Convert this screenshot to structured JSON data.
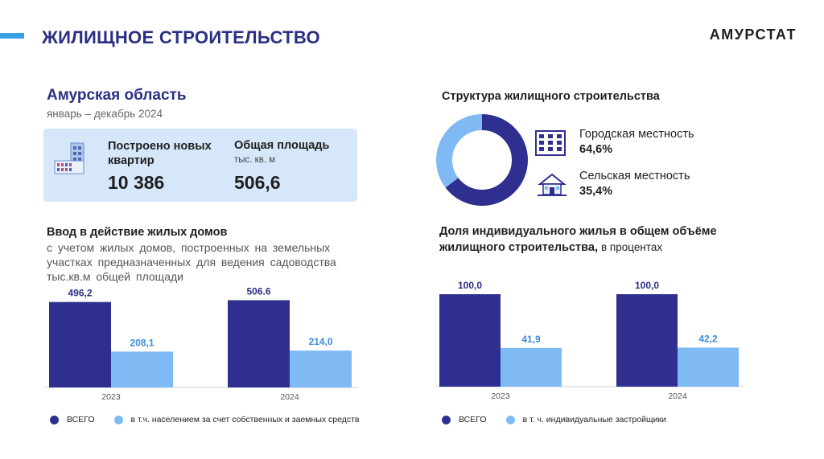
{
  "header": {
    "title": "ЖИЛИЩНОЕ СТРОИТЕЛЬСТВО",
    "brand": "АМУРСТАТ"
  },
  "region": {
    "name": "Амурская область",
    "period": "январь – декабрь 2024"
  },
  "stats": {
    "apartments": {
      "label": "Построено новых квартир",
      "value": "10 386"
    },
    "area": {
      "label": "Общая площадь",
      "unit": "тыс. кв. м",
      "value": "506,6"
    }
  },
  "structure": {
    "title": "Структура жилищного строительства",
    "urban": {
      "label": "Городская местность",
      "value": "64,6%"
    },
    "rural": {
      "label": "Сельская местность",
      "value": "35,4%"
    }
  },
  "colors": {
    "dark": "#2f2f8f",
    "light": "#7fbaf5",
    "accent": "#3aa0e6",
    "title": "#2b2f84"
  },
  "icons": [
    "building-icon",
    "city-building-icon",
    "house-icon"
  ],
  "chart_data": [
    {
      "type": "bar",
      "title": "Ввод в действие жилых домов",
      "subtitle": "с учетом жилых домов, построенных на земельных участках предназначенных для ведения садоводства",
      "ylabel": "тыс.кв.м общей площади",
      "categories": [
        "2023",
        "2024"
      ],
      "series": [
        {
          "name": "ВСЕГО",
          "values": [
            496.2,
            506.6
          ],
          "labels": [
            "496,2",
            "506.6"
          ]
        },
        {
          "name": "в т.ч. населением за счет собственных и заемных средств",
          "values": [
            208.1,
            214.0
          ],
          "labels": [
            "208,1",
            "214,0"
          ]
        }
      ],
      "ylim": [
        0,
        560
      ]
    },
    {
      "type": "bar",
      "title": "Доля индивидуального жилья в общем объёме жилищного строительства,",
      "unit": "в процентах",
      "categories": [
        "2023",
        "2024"
      ],
      "series": [
        {
          "name": "ВСЕГО",
          "values": [
            100.0,
            100.0
          ],
          "labels": [
            "100,0",
            "100,0"
          ]
        },
        {
          "name": "в т. ч. индивидуальные застройщики",
          "values": [
            41.9,
            42.2
          ],
          "labels": [
            "41,9",
            "42,2"
          ]
        }
      ],
      "ylim": [
        0,
        100
      ]
    },
    {
      "type": "pie",
      "title": "Структура жилищного строительства",
      "categories": [
        "Городская местность",
        "Сельская местность"
      ],
      "values": [
        64.6,
        35.4
      ]
    }
  ]
}
